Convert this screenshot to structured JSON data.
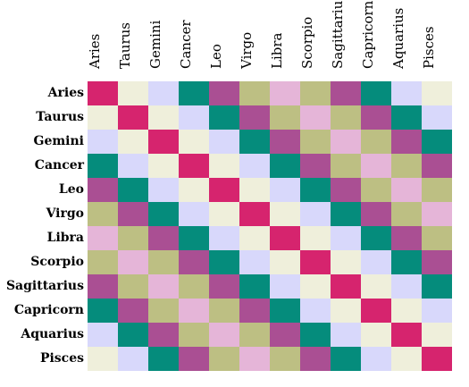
{
  "signs": [
    "Aries",
    "Taurus",
    "Gemini",
    "Cancer",
    "Leo",
    "Virgo",
    "Libra",
    "Scorpio",
    "Sagittarius",
    "Capricorn",
    "Aquarius",
    "Pisces"
  ],
  "col_headers": [
    "Aries",
    "Taurus",
    "Gemini",
    "Cancer",
    "Leo",
    "Virgo",
    "Libra",
    "Scorpio",
    "Sagittarius",
    "Capricorn",
    "Aquarius",
    "Pisces"
  ],
  "row_headers": [
    "Aries",
    "Taurus",
    "Gemini",
    "Cancer",
    "Leo",
    "Virgo",
    "Libra",
    "Scorpio",
    "Sagittarius",
    "Capricorn",
    "Aquarius",
    "Pisces"
  ],
  "palette": {
    "crimson": "#d6246e",
    "teal": "#058c7c",
    "plum": "#aa4f93",
    "olive": "#bdbf83",
    "pink": "#e5b5d8",
    "lavender": "#d8d8fb",
    "cream": "#efefdb"
  },
  "pattern": [
    "crimson",
    "cream",
    "lavender",
    "teal",
    "plum",
    "olive",
    "pink",
    "olive",
    "plum",
    "teal",
    "lavender",
    "cream"
  ]
}
